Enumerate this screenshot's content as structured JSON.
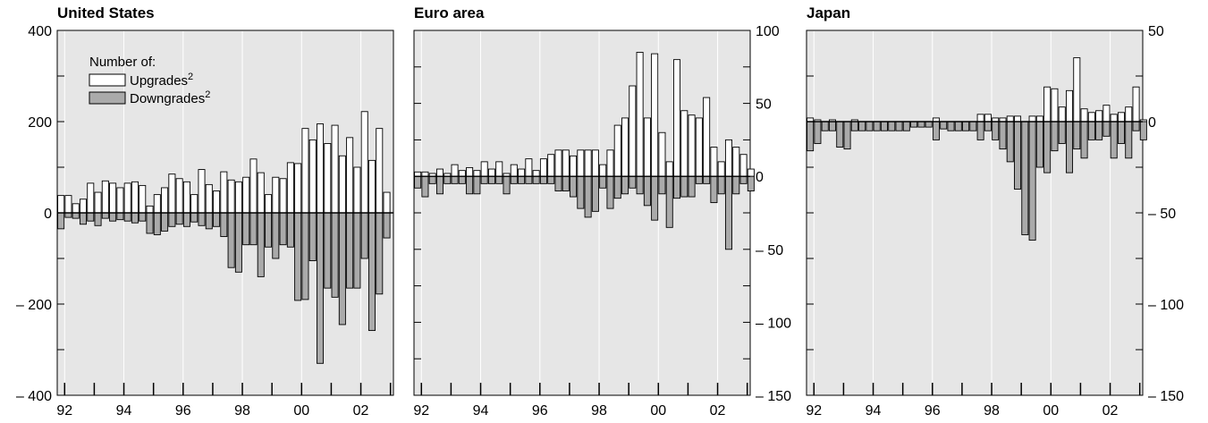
{
  "legend": {
    "heading": "Number of:",
    "upgrades_label": "Upgrades",
    "upgrades_sup": "2",
    "downgrades_label": "Downgrades",
    "downgrades_sup": "2"
  },
  "colors": {
    "plot_background": "#e6e6e6",
    "upgrade_fill": "#ffffff",
    "downgrade_fill": "#aaaaaa",
    "bar_stroke": "#000000",
    "grid": "#ffffff"
  },
  "chart_data": [
    {
      "type": "bar",
      "title": "United States",
      "axis_side": "left",
      "ylim": [
        -400,
        400
      ],
      "y_ticks": [
        400,
        200,
        0,
        -200,
        -400
      ],
      "y_tick_labels": [
        "400",
        "200",
        "0",
        "– 200",
        "– 400"
      ],
      "xlim": [
        1991.75,
        2003.1
      ],
      "x_ticks": [
        1992,
        1994,
        1996,
        1998,
        2000,
        2002
      ],
      "x_tick_labels": [
        "92",
        "94",
        "96",
        "98",
        "00",
        "02"
      ],
      "x_unit": "quarter",
      "x_start": 1991.75,
      "grid": true,
      "series": [
        {
          "name": "Upgrades",
          "values": [
            38,
            38,
            20,
            30,
            65,
            45,
            70,
            65,
            55,
            65,
            68,
            60,
            15,
            40,
            55,
            85,
            75,
            68,
            40,
            95,
            62,
            48,
            90,
            72,
            68,
            78,
            118,
            88,
            40,
            78,
            75,
            110,
            108,
            185,
            160,
            195,
            152,
            192,
            125,
            165,
            100,
            222,
            115,
            185,
            45
          ]
        },
        {
          "name": "Downgrades",
          "values": [
            -35,
            -10,
            -12,
            -25,
            -18,
            -28,
            -12,
            -18,
            -15,
            -18,
            -22,
            -18,
            -45,
            -48,
            -40,
            -30,
            -25,
            -30,
            -20,
            -28,
            -35,
            -30,
            -52,
            -120,
            -130,
            -70,
            -70,
            -140,
            -75,
            -100,
            -70,
            -75,
            -192,
            -190,
            -105,
            -330,
            -165,
            -185,
            -245,
            -165,
            -165,
            -100,
            -258,
            -178,
            -55
          ]
        }
      ]
    },
    {
      "type": "bar",
      "title": "Euro area",
      "axis_side": "right",
      "ylim": [
        -150,
        100
      ],
      "y_ticks": [
        100,
        50,
        0,
        -50,
        -100,
        -150
      ],
      "y_tick_labels": [
        "100",
        "50",
        "0",
        "– 50",
        "– 100",
        "– 150"
      ],
      "xlim": [
        1991.75,
        2003.1
      ],
      "x_ticks": [
        1992,
        1994,
        1996,
        1998,
        2000,
        2002
      ],
      "x_tick_labels": [
        "92",
        "94",
        "96",
        "98",
        "00",
        "02"
      ],
      "x_unit": "quarter",
      "x_start": 1991.75,
      "grid": true,
      "series": [
        {
          "name": "Upgrades",
          "values": [
            3,
            3,
            2,
            5,
            2,
            8,
            4,
            6,
            4,
            10,
            5,
            10,
            2,
            8,
            5,
            12,
            4,
            12,
            15,
            18,
            18,
            14,
            18,
            18,
            18,
            8,
            18,
            35,
            40,
            62,
            85,
            40,
            84,
            30,
            10,
            80,
            45,
            42,
            40,
            54,
            20,
            10,
            25,
            20,
            15,
            5
          ]
        },
        {
          "name": "Downgrades",
          "values": [
            -8,
            -14,
            -5,
            -12,
            -5,
            -5,
            -5,
            -12,
            -12,
            -5,
            -5,
            -5,
            -12,
            -5,
            -5,
            -5,
            -5,
            -5,
            -5,
            -10,
            -10,
            -14,
            -22,
            -28,
            -24,
            -8,
            -22,
            -15,
            -12,
            -8,
            -12,
            -20,
            -30,
            -12,
            -35,
            -15,
            -14,
            -14,
            -5,
            -5,
            -18,
            -12,
            -50,
            -12,
            -5,
            -10
          ]
        }
      ]
    },
    {
      "type": "bar",
      "title": "Japan",
      "axis_side": "right",
      "ylim": [
        -150,
        50
      ],
      "y_ticks": [
        50,
        0,
        -50,
        -100,
        -150
      ],
      "y_tick_labels": [
        "50",
        "0",
        "– 50",
        "– 100",
        "– 150"
      ],
      "xlim": [
        1991.75,
        2003.1
      ],
      "x_ticks": [
        1992,
        1994,
        1996,
        1998,
        2000,
        2002
      ],
      "x_tick_labels": [
        "92",
        "94",
        "96",
        "98",
        "00",
        "02"
      ],
      "x_unit": "quarter",
      "x_start": 1991.75,
      "grid": true,
      "series": [
        {
          "name": "Upgrades",
          "values": [
            2,
            1,
            0,
            1,
            0,
            0,
            1,
            0,
            0,
            0,
            0,
            0,
            0,
            0,
            0,
            0,
            0,
            2,
            0,
            0,
            0,
            0,
            0,
            4,
            4,
            2,
            2,
            3,
            3,
            0,
            3,
            3,
            19,
            18,
            8,
            17,
            35,
            7,
            5,
            6,
            9,
            4,
            5,
            8,
            19,
            1
          ]
        },
        {
          "name": "Downgrades",
          "values": [
            -16,
            -12,
            -5,
            -5,
            -14,
            -15,
            -5,
            -5,
            -5,
            -5,
            -5,
            -5,
            -5,
            -5,
            -3,
            -3,
            -3,
            -10,
            -4,
            -5,
            -5,
            -5,
            -5,
            -10,
            -5,
            -10,
            -15,
            -22,
            -37,
            -62,
            -65,
            -25,
            -28,
            -16,
            -12,
            -28,
            -15,
            -20,
            -10,
            -10,
            -8,
            -20,
            -12,
            -20,
            -5,
            -10
          ]
        }
      ]
    }
  ]
}
